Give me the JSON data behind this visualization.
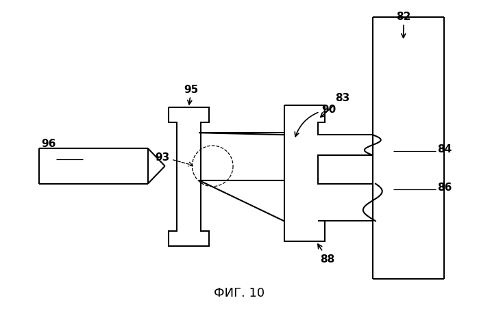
{
  "bg_color": "#ffffff",
  "line_color": "#000000",
  "line_width": 1.5,
  "title": "ФИГ. 10",
  "title_fontsize": 13,
  "fig_width": 6.99,
  "fig_height": 4.56,
  "dpi": 100
}
